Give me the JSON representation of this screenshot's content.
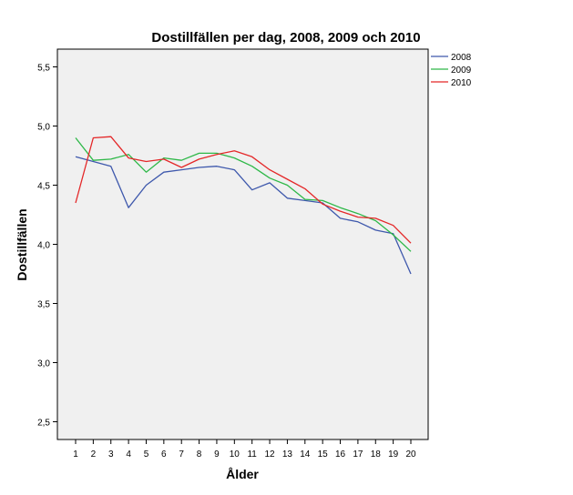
{
  "chart_data": {
    "type": "line",
    "title": "Dostillfällen per dag, 2008, 2009 och 2010",
    "xlabel": "Ålder",
    "ylabel": "Dostillfällen",
    "x": [
      "1",
      "2",
      "3",
      "4",
      "5",
      "6",
      "7",
      "8",
      "9",
      "10",
      "11",
      "12",
      "13",
      "14",
      "15",
      "16",
      "17",
      "18",
      "19",
      "20"
    ],
    "ylim": [
      2.35,
      5.65
    ],
    "yticks": [
      {
        "value": 2.5,
        "label": "2,5"
      },
      {
        "value": 3.0,
        "label": "3,0"
      },
      {
        "value": 3.5,
        "label": "3,5"
      },
      {
        "value": 4.0,
        "label": "4,0"
      },
      {
        "value": 4.5,
        "label": "4,5"
      },
      {
        "value": 5.0,
        "label": "5,0"
      },
      {
        "value": 5.5,
        "label": "5,5"
      }
    ],
    "grid": false,
    "legend_position": "top-right-outside",
    "plot_background": "#f0f0f0",
    "series": [
      {
        "name": "2008",
        "color": "#3e58ac",
        "values": [
          4.74,
          4.7,
          4.66,
          4.31,
          4.5,
          4.61,
          4.63,
          4.65,
          4.66,
          4.63,
          4.46,
          4.52,
          4.39,
          4.37,
          4.35,
          4.22,
          4.19,
          4.12,
          4.09,
          3.75
        ]
      },
      {
        "name": "2009",
        "color": "#2eb848",
        "values": [
          4.9,
          4.71,
          4.72,
          4.76,
          4.61,
          4.73,
          4.71,
          4.77,
          4.77,
          4.73,
          4.66,
          4.56,
          4.5,
          4.38,
          4.37,
          4.31,
          4.26,
          4.2,
          4.08,
          3.94
        ]
      },
      {
        "name": "2010",
        "color": "#e42728",
        "values": [
          4.35,
          4.9,
          4.91,
          4.73,
          4.7,
          4.72,
          4.65,
          4.72,
          4.76,
          4.79,
          4.74,
          4.63,
          4.55,
          4.47,
          4.34,
          4.28,
          4.23,
          4.22,
          4.16,
          4.01
        ]
      }
    ]
  }
}
